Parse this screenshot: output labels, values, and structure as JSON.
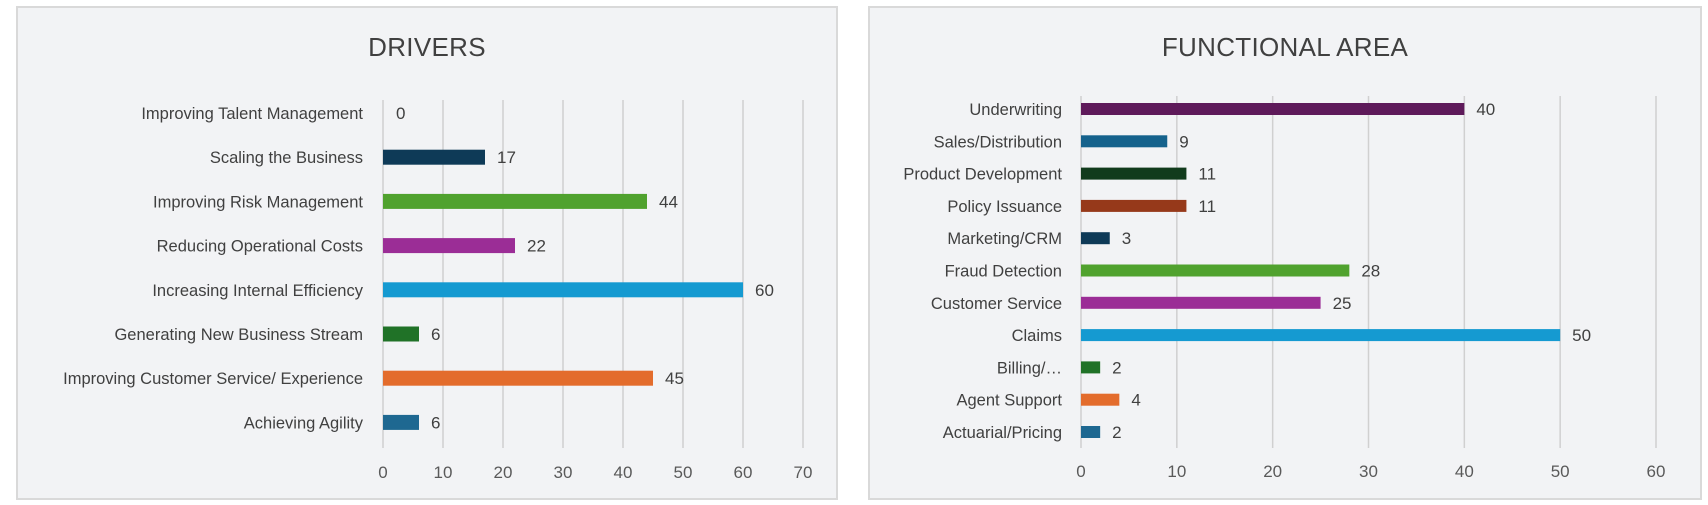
{
  "chart_data": [
    {
      "type": "bar",
      "orientation": "horizontal",
      "title": "DRIVERS",
      "categories": [
        "Improving Talent Management",
        "Scaling the Business",
        "Improving Risk Management",
        "Reducing Operational Costs",
        "Increasing Internal Efficiency",
        "Generating New Business Stream",
        "Improving Customer Service/ Experience",
        "Achieving Agility"
      ],
      "values": [
        0,
        17,
        44,
        22,
        60,
        6,
        45,
        6
      ],
      "colors": [
        "#0e3a57",
        "#0e3a57",
        "#50a22e",
        "#9b2d96",
        "#159ad1",
        "#207227",
        "#e36c2c",
        "#1e6891"
      ],
      "xlim": [
        0,
        70
      ],
      "xticks": [
        0,
        10,
        20,
        30,
        40,
        50,
        60,
        70
      ],
      "xtick_labels": [
        "0",
        "10",
        "20",
        "30",
        "40",
        "50",
        "60",
        "70"
      ],
      "grid": true
    },
    {
      "type": "bar",
      "orientation": "horizontal",
      "title": "FUNCTIONAL AREA",
      "categories": [
        "Underwriting",
        "Sales/Distribution",
        "Product Development",
        "Policy Issuance",
        "Marketing/CRM",
        "Fraud Detection",
        "Customer Service",
        "Claims",
        "Billing/…",
        "Agent Support",
        "Actuarial/Pricing"
      ],
      "values": [
        40,
        9,
        11,
        11,
        3,
        28,
        25,
        50,
        2,
        4,
        2
      ],
      "colors": [
        "#5e1a5a",
        "#15628c",
        "#113b1c",
        "#96391a",
        "#0e3a57",
        "#50a22e",
        "#9b2d96",
        "#159ad1",
        "#207227",
        "#e36c2c",
        "#1e6891"
      ],
      "xlim": [
        0,
        60
      ],
      "xticks": [
        0,
        10,
        20,
        30,
        40,
        50,
        60
      ],
      "xtick_labels": [
        "0",
        "10",
        "20",
        "30",
        "40",
        "50",
        "60"
      ],
      "grid": true
    }
  ]
}
